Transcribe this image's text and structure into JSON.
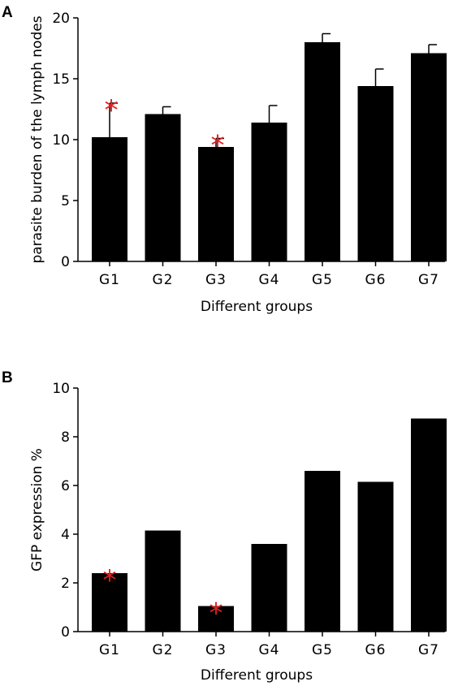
{
  "chart_data": [
    {
      "panel": "A",
      "type": "bar",
      "xlabel": "Different groups",
      "ylabel": "parasite burden of the lymph nodes",
      "ylim": [
        0,
        20
      ],
      "yticks": [
        0,
        5,
        10,
        15,
        20
      ],
      "categories": [
        "G1",
        "G2",
        "G3",
        "G4",
        "G5",
        "G6",
        "G7"
      ],
      "values": [
        10.2,
        12.1,
        9.4,
        11.4,
        18.0,
        14.4,
        17.1
      ],
      "errors": [
        2.8,
        0.6,
        0.7,
        1.4,
        0.7,
        1.4,
        0.7
      ],
      "significant": [
        true,
        false,
        true,
        false,
        false,
        false,
        false
      ],
      "marker": "*",
      "marker_color": "#e02020",
      "bar_color": "#000000"
    },
    {
      "panel": "B",
      "type": "bar",
      "xlabel": "Different groups",
      "ylabel": "GFP expression %",
      "ylim": [
        0,
        10
      ],
      "yticks": [
        0,
        2,
        4,
        6,
        8,
        10
      ],
      "categories": [
        "G1",
        "G2",
        "G3",
        "G4",
        "G5",
        "G6",
        "G7"
      ],
      "values": [
        2.4,
        4.15,
        1.05,
        3.6,
        6.6,
        6.15,
        8.75
      ],
      "significant": [
        true,
        false,
        true,
        false,
        false,
        false,
        false
      ],
      "marker": "*",
      "marker_color": "#e02020",
      "bar_color": "#000000"
    }
  ]
}
